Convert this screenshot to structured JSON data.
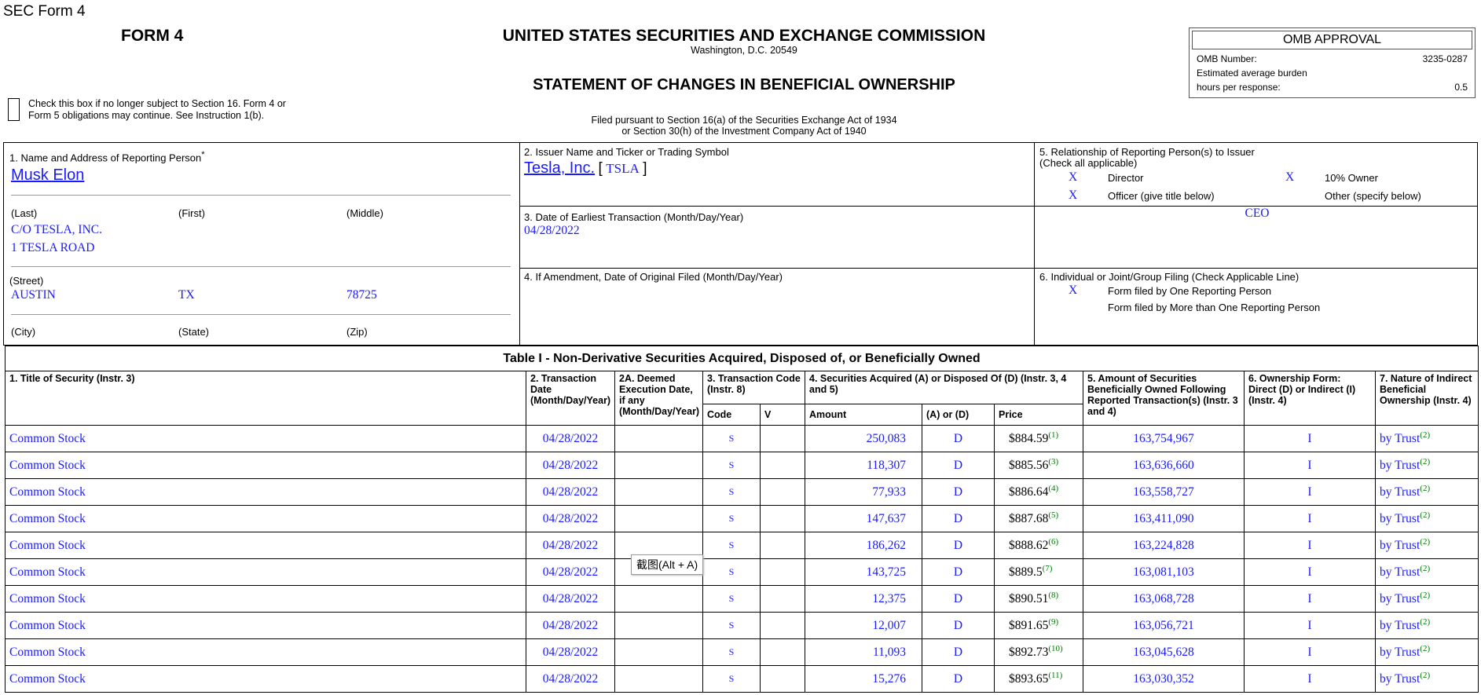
{
  "page_title": "SEC Form 4",
  "header": {
    "form": "FORM 4",
    "agency": "UNITED STATES SECURITIES AND EXCHANGE COMMISSION",
    "location": "Washington, D.C. 20549",
    "title": "STATEMENT OF CHANGES IN BENEFICIAL OWNERSHIP",
    "checkbox_note": "Check this box if no longer subject to Section 16. Form 4 or Form 5 obligations may continue. See Instruction 1(b).",
    "filed_pursuant": [
      "Filed pursuant to Section 16(a) of the Securities Exchange Act of 1934",
      "or Section 30(h) of the Investment Company Act of 1940"
    ]
  },
  "omb": {
    "title": "OMB APPROVAL",
    "number_label": "OMB Number:",
    "number": "3235-0287",
    "burden_label": "Estimated average burden",
    "hours_label": "hours per response:",
    "hours": "0.5"
  },
  "box1": {
    "label": "1. Name and Address of Reporting Person",
    "asterisk": "*",
    "name": "Musk Elon",
    "last_label": "(Last)",
    "first_label": "(First)",
    "middle_label": "(Middle)",
    "street": [
      "C/O TESLA, INC.",
      "1 TESLA ROAD"
    ],
    "street_label": "(Street)",
    "city": "AUSTIN",
    "state": "TX",
    "zip": "78725",
    "city_label": "(City)",
    "state_label": "(State)",
    "zip_label": "(Zip)"
  },
  "box2": {
    "label": "2. Issuer Name and Ticker or Trading Symbol",
    "issuer": "Tesla, Inc.",
    "ticker_open": "[",
    "ticker": "TSLA",
    "ticker_close": "]"
  },
  "box3": {
    "label": "3. Date of Earliest Transaction (Month/Day/Year)",
    "date": "04/28/2022"
  },
  "box4": {
    "label": "4. If Amendment, Date of Original Filed (Month/Day/Year)"
  },
  "box5": {
    "label": "5. Relationship of Reporting Person(s) to Issuer",
    "sublabel": "(Check all applicable)",
    "director": {
      "mark": "X",
      "label": "Director"
    },
    "owner10": {
      "mark": "X",
      "label": "10% Owner"
    },
    "officer": {
      "mark": "X",
      "label": "Officer (give title below)"
    },
    "other": {
      "label": "Other (specify below)"
    },
    "officer_title": "CEO"
  },
  "box6": {
    "label": "6. Individual or Joint/Group Filing (Check Applicable Line)",
    "one": {
      "mark": "X",
      "label": "Form filed by One Reporting Person"
    },
    "more": {
      "label": "Form filed by More than One Reporting Person"
    }
  },
  "table": {
    "title": "Table I - Non-Derivative Securities Acquired, Disposed of, or Beneficially Owned",
    "headers": {
      "security": "1. Title of Security (Instr. 3)",
      "date": "2. Transaction Date (Month/Day/Year)",
      "deemed": "2A. Deemed Execution Date, if any (Month/Day/Year)",
      "code": "3. Transaction Code (Instr. 8)",
      "code_sub": "Code",
      "v_sub": "V",
      "acquired": "4. Securities Acquired (A) or Disposed Of (D) (Instr. 3, 4 and 5)",
      "amount_sub": "Amount",
      "ad_sub": "(A) or (D)",
      "price_sub": "Price",
      "owned": "5. Amount of Securities Beneficially Owned Following Reported Transaction(s) (Instr. 3 and 4)",
      "form": "6. Ownership Form: Direct (D) or Indirect (I) (Instr. 4)",
      "nature": "7. Nature of Indirect Beneficial Ownership (Instr. 4)"
    },
    "rows": [
      {
        "security": "Common Stock",
        "date": "04/28/2022",
        "code": "S",
        "amount": "250,083",
        "ad": "D",
        "price": "$884.59",
        "footnote": "(1)",
        "owned": "163,754,967",
        "form": "I",
        "nature": "by Trust",
        "nature_note": "(2)"
      },
      {
        "security": "Common Stock",
        "date": "04/28/2022",
        "code": "S",
        "amount": "118,307",
        "ad": "D",
        "price": "$885.56",
        "footnote": "(3)",
        "owned": "163,636,660",
        "form": "I",
        "nature": "by Trust",
        "nature_note": "(2)"
      },
      {
        "security": "Common Stock",
        "date": "04/28/2022",
        "code": "S",
        "amount": "77,933",
        "ad": "D",
        "price": "$886.64",
        "footnote": "(4)",
        "owned": "163,558,727",
        "form": "I",
        "nature": "by Trust",
        "nature_note": "(2)"
      },
      {
        "security": "Common Stock",
        "date": "04/28/2022",
        "code": "S",
        "amount": "147,637",
        "ad": "D",
        "price": "$887.68",
        "footnote": "(5)",
        "owned": "163,411,090",
        "form": "I",
        "nature": "by Trust",
        "nature_note": "(2)"
      },
      {
        "security": "Common Stock",
        "date": "04/28/2022",
        "code": "S",
        "amount": "186,262",
        "ad": "D",
        "price": "$888.62",
        "footnote": "(6)",
        "owned": "163,224,828",
        "form": "I",
        "nature": "by Trust",
        "nature_note": "(2)"
      },
      {
        "security": "Common Stock",
        "date": "04/28/2022",
        "code": "S",
        "amount": "143,725",
        "ad": "D",
        "price": "$889.5",
        "footnote": "(7)",
        "owned": "163,081,103",
        "form": "I",
        "nature": "by Trust",
        "nature_note": "(2)"
      },
      {
        "security": "Common Stock",
        "date": "04/28/2022",
        "code": "S",
        "amount": "12,375",
        "ad": "D",
        "price": "$890.51",
        "footnote": "(8)",
        "owned": "163,068,728",
        "form": "I",
        "nature": "by Trust",
        "nature_note": "(2)"
      },
      {
        "security": "Common Stock",
        "date": "04/28/2022",
        "code": "S",
        "amount": "12,007",
        "ad": "D",
        "price": "$891.65",
        "footnote": "(9)",
        "owned": "163,056,721",
        "form": "I",
        "nature": "by Trust",
        "nature_note": "(2)"
      },
      {
        "security": "Common Stock",
        "date": "04/28/2022",
        "code": "S",
        "amount": "11,093",
        "ad": "D",
        "price": "$892.73",
        "footnote": "(10)",
        "owned": "163,045,628",
        "form": "I",
        "nature": "by Trust",
        "nature_note": "(2)"
      },
      {
        "security": "Common Stock",
        "date": "04/28/2022",
        "code": "S",
        "amount": "15,276",
        "ad": "D",
        "price": "$893.65",
        "footnote": "(11)",
        "owned": "163,030,352",
        "form": "I",
        "nature": "by Trust",
        "nature_note": "(2)"
      }
    ]
  },
  "tooltip": "截图(Alt + A)"
}
